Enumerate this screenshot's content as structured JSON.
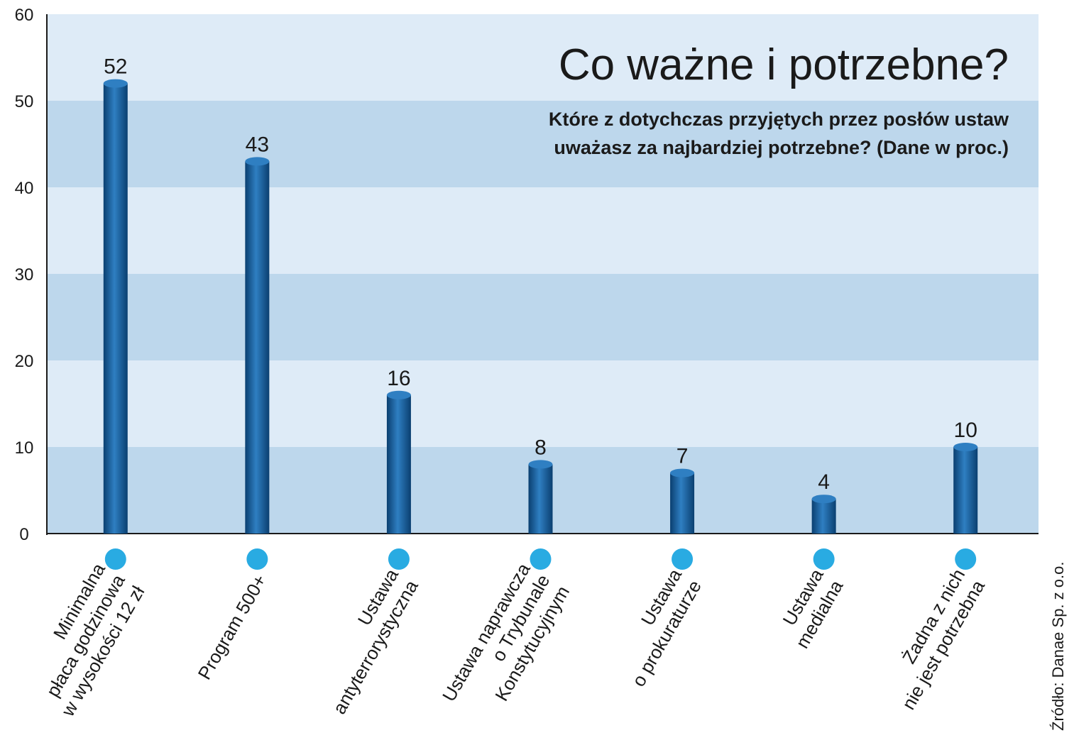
{
  "chart_data": {
    "type": "bar",
    "title": "Co ważne i potrzebne?",
    "subtitle_lines": [
      "Które z dotychczas przyjętych przez posłów ustaw",
      "uważasz za najbardziej potrzebne? (Dane w proc.)"
    ],
    "categories": [
      [
        "Minimalna",
        "płaca godzinowa",
        "w wysokości 12 zł"
      ],
      [
        "Program 500+"
      ],
      [
        "Ustawa",
        "antyterrorystyczna"
      ],
      [
        "Ustawa naprawcza",
        "o Trybunale",
        "Konstytucyjnym"
      ],
      [
        "Ustawa",
        "o prokuraturze"
      ],
      [
        "Ustawa",
        "medialna"
      ],
      [
        "Żadna z nich",
        "nie jest potrzebna"
      ]
    ],
    "values": [
      52,
      43,
      16,
      8,
      7,
      4,
      10
    ],
    "ylim": [
      0,
      60
    ],
    "yticks": [
      0,
      10,
      20,
      30,
      40,
      50,
      60
    ],
    "xlabel": "",
    "ylabel": "",
    "source": "Źródło: Danae Sp. z o.o."
  },
  "colors": {
    "band_light": "#deebf7",
    "band_dark": "#bdd7ec",
    "bar": "#0f5a9b",
    "bar_dark": "#0a3f70",
    "bar_light": "#2f7fc2",
    "dot": "#29abe2",
    "axis": "#1a1a1a"
  }
}
